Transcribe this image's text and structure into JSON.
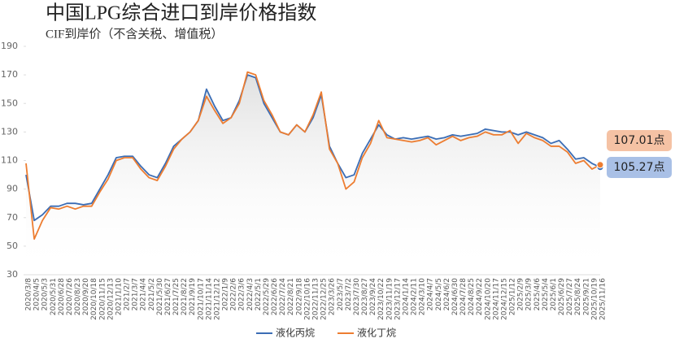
{
  "chart_data": {
    "type": "line",
    "title": "中国LPG综合进口到岸价格指数",
    "subtitle": "CIF到岸价（不含关税、增值税）",
    "categories": [
      "2020/3/8",
      "2020/4/5",
      "2020/5/3",
      "2020/5/31",
      "2020/6/28",
      "2020/7/26",
      "2020/8/23",
      "2020/9/20",
      "2020/10/18",
      "2020/11/15",
      "2020/12/13",
      "2021/1/10",
      "2021/2/7",
      "2021/3/7",
      "2021/4/4",
      "2021/5/2",
      "2021/5/30",
      "2021/6/27",
      "2021/7/25",
      "2021/8/22",
      "2021/9/19",
      "2021/10/17",
      "2021/11/14",
      "2021/12/12",
      "2022/1/9",
      "2022/2/6",
      "2022/3/6",
      "2022/4/3",
      "2022/5/1",
      "2022/5/29",
      "2022/6/26",
      "2022/7/24",
      "2022/8/21",
      "2022/9/18",
      "2022/10/16",
      "2022/11/13",
      "2022/12/25",
      "2023/3/26",
      "2023/5/7",
      "2023/7/2",
      "2023/7/30",
      "2023/8/27",
      "2023/9/24",
      "2023/10/22",
      "2023/11/19",
      "2023/12/17",
      "2024/1/14",
      "2024/2/11",
      "2024/3/10",
      "2024/4/7",
      "2024/5/5",
      "2024/6/2",
      "2024/6/30",
      "2024/7/28",
      "2024/8/25",
      "2024/9/22",
      "2024/10/20",
      "2024/11/17",
      "2024/12/15",
      "2025/1/12",
      "2025/2/9",
      "2025/3/9",
      "2025/4/6",
      "2025/5/4",
      "2025/6/1",
      "2025/6/29",
      "2025/7/27",
      "2025/8/24",
      "2025/9/21",
      "2025/10/19",
      "2025/11/16"
    ],
    "series": [
      {
        "name": "液化丙烷",
        "color": "#3b6db5",
        "values": [
          100,
          68,
          72,
          78,
          78,
          80,
          80,
          79,
          80,
          90,
          100,
          112,
          113,
          113,
          106,
          100,
          98,
          108,
          120,
          125,
          130,
          138,
          160,
          148,
          138,
          140,
          152,
          170,
          168,
          150,
          140,
          130,
          128,
          135,
          130,
          140,
          156,
          120,
          108,
          98,
          100,
          115,
          125,
          135,
          128,
          125,
          126,
          125,
          126,
          127,
          125,
          126,
          128,
          127,
          128,
          129,
          132,
          131,
          130,
          130,
          128,
          130,
          128,
          126,
          122,
          124,
          118,
          111,
          112,
          108,
          105.27
        ],
        "value_labels": [
          null,
          null,
          null,
          null,
          null,
          null,
          null,
          null,
          null,
          null,
          null,
          null,
          null,
          null,
          null,
          null,
          null,
          null,
          null,
          null,
          null,
          null,
          null,
          null,
          null,
          null,
          null,
          null,
          null,
          null,
          null,
          null,
          null,
          null,
          null,
          null,
          null,
          null,
          null,
          null,
          null,
          null,
          null,
          null,
          null,
          null,
          null,
          null,
          null,
          null,
          null,
          null,
          null,
          null,
          null,
          null,
          null,
          null,
          null,
          null,
          null,
          null,
          null,
          null,
          null,
          null,
          null,
          null,
          null,
          null,
          "105.27点"
        ]
      },
      {
        "name": "液化丁烷",
        "color": "#ed7d31",
        "values": [
          108,
          55,
          68,
          77,
          76,
          78,
          76,
          78,
          78,
          88,
          97,
          110,
          112,
          112,
          104,
          98,
          96,
          106,
          118,
          125,
          130,
          138,
          155,
          145,
          136,
          140,
          150,
          172,
          170,
          152,
          142,
          130,
          128,
          135,
          130,
          142,
          158,
          118,
          108,
          90,
          95,
          112,
          122,
          138,
          126,
          125,
          124,
          123,
          124,
          126,
          121,
          124,
          127,
          124,
          126,
          127,
          130,
          128,
          128,
          131,
          122,
          129,
          126,
          124,
          120,
          120,
          116,
          108,
          110,
          104,
          107.01
        ],
        "value_labels": [
          null,
          null,
          null,
          null,
          null,
          null,
          null,
          null,
          null,
          null,
          null,
          null,
          null,
          null,
          null,
          null,
          null,
          null,
          null,
          null,
          null,
          null,
          null,
          null,
          null,
          null,
          null,
          null,
          null,
          null,
          null,
          null,
          null,
          null,
          null,
          null,
          null,
          null,
          null,
          null,
          null,
          null,
          null,
          null,
          null,
          null,
          null,
          null,
          null,
          null,
          null,
          null,
          null,
          null,
          null,
          null,
          null,
          null,
          null,
          null,
          null,
          null,
          null,
          null,
          null,
          null,
          null,
          null,
          null,
          null,
          "107.01点"
        ]
      }
    ],
    "ylim": [
      30,
      190
    ],
    "yticks": [
      30,
      50,
      70,
      90,
      110,
      130,
      150,
      170,
      190
    ],
    "legend": "bottom"
  }
}
